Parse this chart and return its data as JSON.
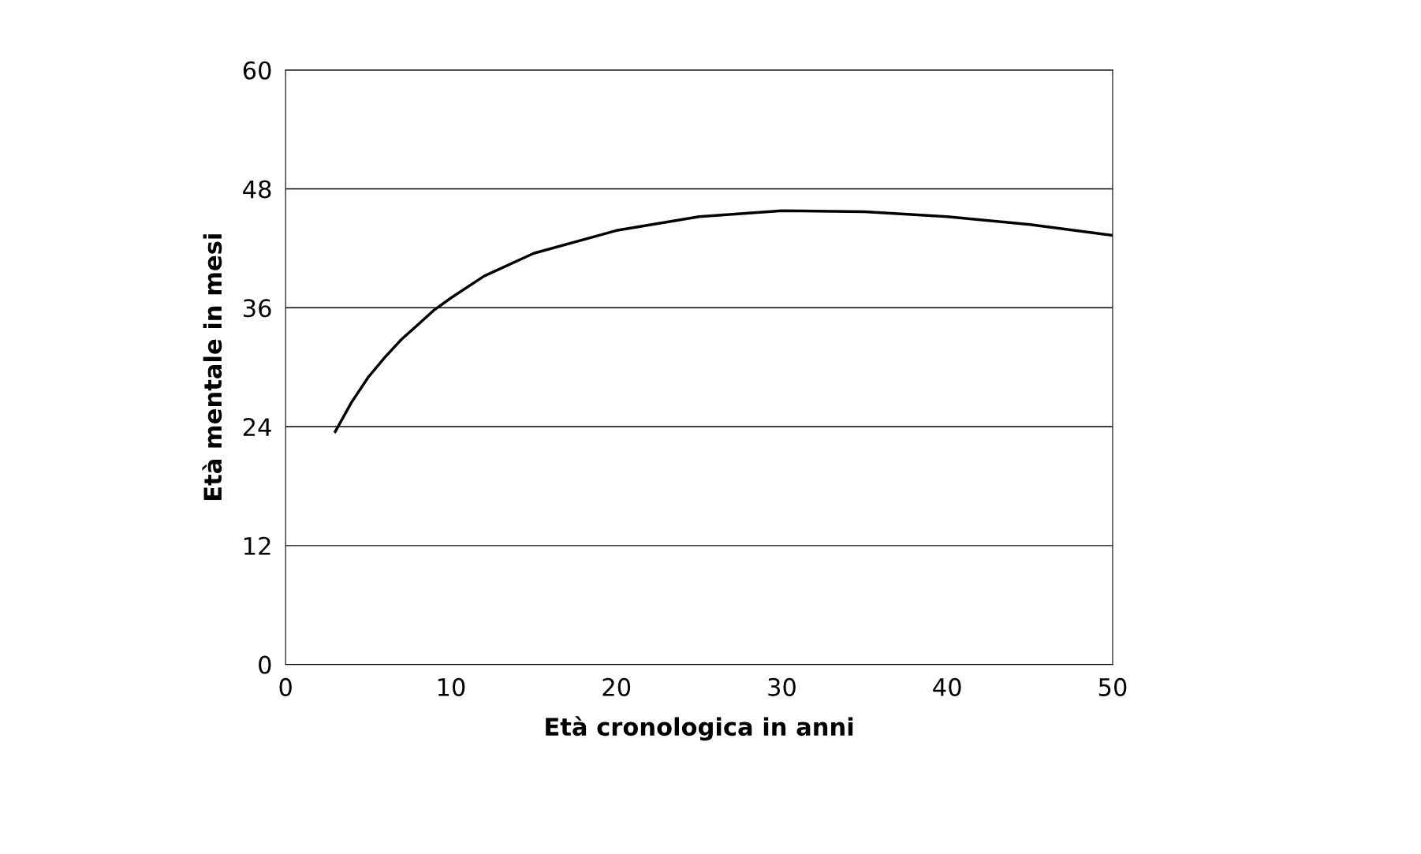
{
  "chart_data": {
    "type": "line",
    "xlabel": "Età cronologica in anni",
    "ylabel": "Età mentale in mesi",
    "series": [
      {
        "color": "#000000",
        "x": [
          3,
          4,
          5,
          6,
          7,
          8,
          9,
          10,
          12,
          15,
          20,
          25,
          30,
          35,
          40,
          45,
          50
        ],
        "values": [
          23.5,
          26.5,
          29,
          31,
          32.8,
          34.3,
          35.8,
          37,
          39.2,
          41.5,
          43.8,
          45.2,
          45.8,
          45.7,
          45.2,
          44.4,
          43.3
        ]
      }
    ],
    "xlim": [
      0,
      50
    ],
    "ylim": [
      0,
      60
    ],
    "xticks": [
      0,
      10,
      20,
      30,
      40,
      50
    ],
    "yticks": [
      0,
      12,
      24,
      36,
      48,
      60
    ],
    "grid": "y",
    "legend": false,
    "marker": "none",
    "line_style": "solid"
  }
}
